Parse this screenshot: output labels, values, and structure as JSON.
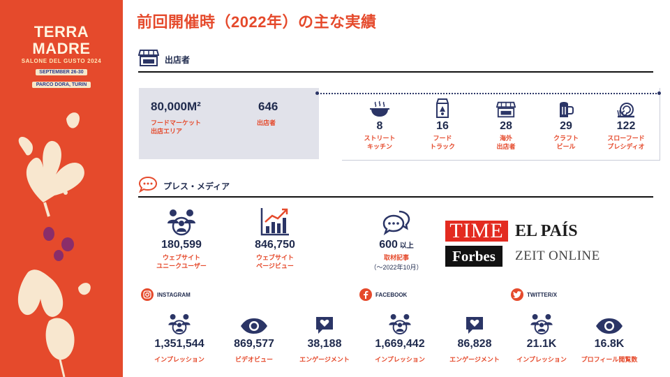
{
  "logo": {
    "title": "TERRA MADRE",
    "subtitle": "SALONE DEL GUSTO 2024",
    "dates": "SEPTEMBER 26-30",
    "place": "PARCO DORA, TURIN"
  },
  "title": "前回開催時（2022年）の主な実績",
  "exhibitors": {
    "heading": "出店者",
    "main_stats": [
      {
        "value": "80,000M²",
        "caption_line1": "フードマーケット",
        "caption_line2": "出店エリア"
      },
      {
        "value": "646",
        "caption_line1": "出店者",
        "caption_line2": ""
      }
    ],
    "breakdown": [
      {
        "icon": "street-kitchen-icon",
        "value": "8",
        "caption_line1": "ストリート",
        "caption_line2": "キッチン"
      },
      {
        "icon": "food-truck-icon",
        "value": "16",
        "caption_line1": "フード",
        "caption_line2": "トラック"
      },
      {
        "icon": "store-icon",
        "value": "28",
        "caption_line1": "海外",
        "caption_line2": "出店者"
      },
      {
        "icon": "beer-icon",
        "value": "29",
        "caption_line1": "クラフト",
        "caption_line2": "ビール"
      },
      {
        "icon": "snail-icon",
        "value": "122",
        "caption_line1": "スローフード",
        "caption_line2": "プレシディオ"
      }
    ]
  },
  "press": {
    "heading": "プレス・メディア",
    "web_users": {
      "value": "180,599",
      "caption_line1": "ウェブサイト",
      "caption_line2": "ユニークユーザー"
    },
    "page_views": {
      "value": "846,750",
      "caption_line1": "ウェブサイト",
      "caption_line2": "ページビュー"
    },
    "articles": {
      "value": "600",
      "unit": " 以上",
      "caption": "取材記事",
      "note": "（～2022年10月）"
    },
    "media_logos": {
      "time": "TIME",
      "elpais": "EL PAÍS",
      "forbes": "Forbes",
      "zeit": "ZEIT ONLINE"
    }
  },
  "social": {
    "instagram": {
      "label": "INSTAGRAM",
      "stats": [
        {
          "value": "1,351,544",
          "caption": "インプレッション"
        },
        {
          "value": "869,577",
          "caption": "ビデオビュー"
        },
        {
          "value": "38,188",
          "caption": "エンゲージメント"
        }
      ]
    },
    "facebook": {
      "label": "FACEBOOK",
      "stats": [
        {
          "value": "1,669,442",
          "caption": "インプレッション"
        },
        {
          "value": "86,828",
          "caption": "エンゲージメント"
        }
      ]
    },
    "twitter": {
      "label": "TWITTER/X",
      "stats": [
        {
          "value": "21.1K",
          "caption": "インプレッション"
        },
        {
          "value": "16.8K",
          "caption": "プロフィール閲覧数"
        }
      ]
    }
  },
  "colors": {
    "accent": "#e54a2c",
    "navy": "#1f2a4d",
    "panel": "#e1e2ea"
  }
}
